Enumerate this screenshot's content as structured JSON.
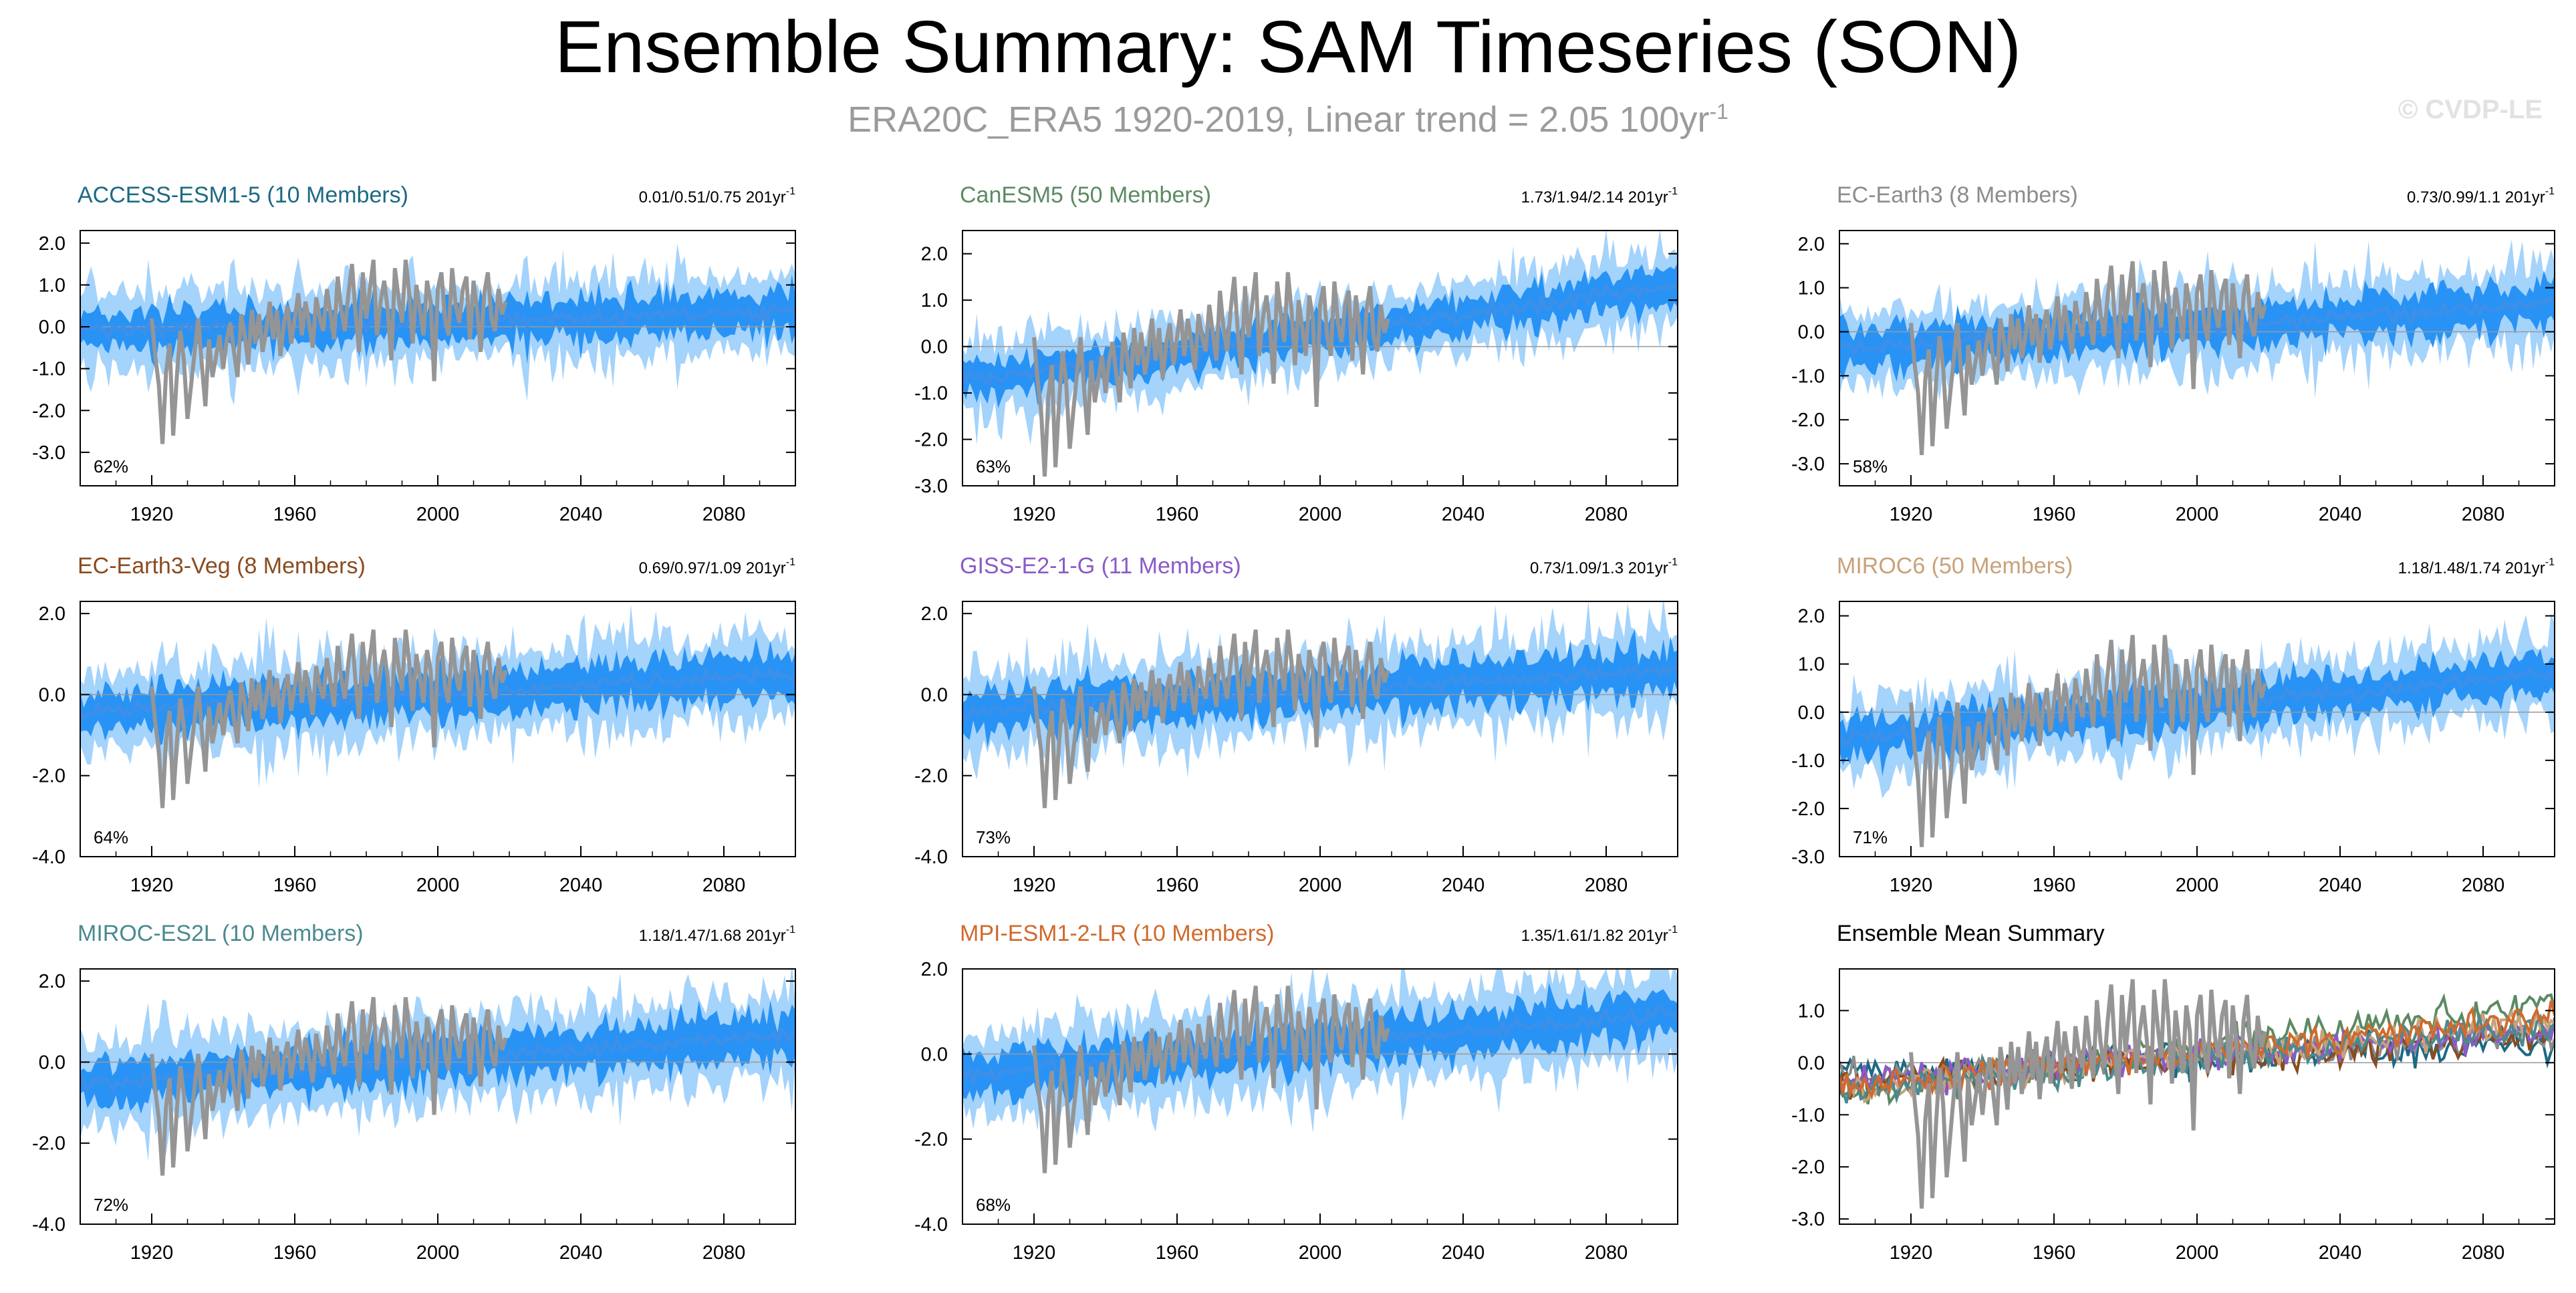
{
  "title": "Ensemble Summary: SAM Timeseries (SON)",
  "subtitle": {
    "text": "ERA20C_ERA5 1920-2019, Linear trend = 2.05 100yr",
    "sup": "-1"
  },
  "copyright": "© CVDP-LE",
  "colors": {
    "band_outer": "#a4d3fb",
    "band_inner": "#2893f5",
    "ensemble_mean": "#3e8fe8",
    "observations": "#959595",
    "frame": "#000000",
    "zero_line": "#999999"
  },
  "chart_data": [
    {
      "type": "area",
      "title": "ACCESS-ESM1-5 (10 Members)",
      "title_color": "#1b6a83",
      "trend": "0.01/0.51/0.75 201yr",
      "trend_sup": "-1",
      "percent": "62%",
      "x_range": [
        1900,
        2100
      ],
      "ylim": [
        -3.8,
        2.3
      ],
      "yticks": [
        2.0,
        1.0,
        0.0,
        -1.0,
        -2.0,
        -3.0
      ],
      "ytick_labels": [
        "2.0",
        "1.0",
        "0.0",
        "-1.0",
        "-2.0",
        "-3.0"
      ],
      "xticks": [
        1920,
        1960,
        2000,
        2040,
        2080
      ],
      "xtick_labels": [
        "1920",
        "1960",
        "2000",
        "2040",
        "2080"
      ],
      "trend_start": -0.1,
      "trend_end": 0.35,
      "spread": 1.15,
      "seed": 11
    },
    {
      "type": "area",
      "title": "CanESM5 (50 Members)",
      "title_color": "#5c8a62",
      "trend": "1.73/1.94/2.14 201yr",
      "trend_sup": "-1",
      "percent": "63%",
      "x_range": [
        1900,
        2100
      ],
      "ylim": [
        -3.0,
        2.5
      ],
      "yticks": [
        2.0,
        1.0,
        0.0,
        -1.0,
        -2.0,
        -3.0
      ],
      "ytick_labels": [
        "2.0",
        "1.0",
        "0.0",
        "-1.0",
        "-2.0",
        "-3.0"
      ],
      "xticks": [
        1920,
        1960,
        2000,
        2040,
        2080
      ],
      "xtick_labels": [
        "1920",
        "1960",
        "2000",
        "2040",
        "2080"
      ],
      "trend_start": -0.75,
      "trend_end": 1.3,
      "spread": 0.95,
      "seed": 23
    },
    {
      "type": "area",
      "title": "EC-Earth3 (8 Members)",
      "title_color": "#8c8c8c",
      "trend": "0.73/0.99/1.1 201yr",
      "trend_sup": "-1",
      "percent": "58%",
      "x_range": [
        1900,
        2100
      ],
      "ylim": [
        -3.5,
        2.3
      ],
      "yticks": [
        2.0,
        1.0,
        0.0,
        -1.0,
        -2.0,
        -3.0
      ],
      "ytick_labels": [
        "2.0",
        "1.0",
        "0.0",
        "-1.0",
        "-2.0",
        "-3.0"
      ],
      "xticks": [
        1920,
        1960,
        2000,
        2040,
        2080
      ],
      "xtick_labels": [
        "1920",
        "1960",
        "2000",
        "2040",
        "2080"
      ],
      "trend_start": -0.4,
      "trend_end": 0.6,
      "spread": 1.1,
      "seed": 37
    },
    {
      "type": "area",
      "title": "EC-Earth3-Veg (8 Members)",
      "title_color": "#8a4b1f",
      "trend": "0.69/0.97/1.09 201yr",
      "trend_sup": "-1",
      "percent": "64%",
      "x_range": [
        1900,
        2100
      ],
      "ylim": [
        -4.0,
        2.3
      ],
      "yticks": [
        2.0,
        0.0,
        -2.0,
        -4.0
      ],
      "ytick_labels": [
        "2.0",
        "0.0",
        "-2.0",
        "-4.0"
      ],
      "xticks": [
        1920,
        1960,
        2000,
        2040,
        2080
      ],
      "xtick_labels": [
        "1920",
        "1960",
        "2000",
        "2040",
        "2080"
      ],
      "trend_start": -0.45,
      "trend_end": 0.5,
      "spread": 1.3,
      "seed": 41
    },
    {
      "type": "area",
      "title": "GISS-E2-1-G (11 Members)",
      "title_color": "#8a5ac8",
      "trend": "0.73/1.09/1.3 201yr",
      "trend_sup": "-1",
      "percent": "73%",
      "x_range": [
        1900,
        2100
      ],
      "ylim": [
        -4.0,
        2.3
      ],
      "yticks": [
        2.0,
        0.0,
        -2.0,
        -4.0
      ],
      "ytick_labels": [
        "2.0",
        "0.0",
        "-2.0",
        "-4.0"
      ],
      "xticks": [
        1920,
        1960,
        2000,
        2040,
        2080
      ],
      "xtick_labels": [
        "1920",
        "1960",
        "2000",
        "2040",
        "2080"
      ],
      "trend_start": -0.45,
      "trend_end": 0.6,
      "spread": 1.3,
      "seed": 53
    },
    {
      "type": "area",
      "title": "MIROC6 (50 Members)",
      "title_color": "#c8a27a",
      "trend": "1.18/1.48/1.74 201yr",
      "trend_sup": "-1",
      "percent": "71%",
      "x_range": [
        1900,
        2100
      ],
      "ylim": [
        -3.0,
        2.3
      ],
      "yticks": [
        2.0,
        1.0,
        0.0,
        -1.0,
        -2.0,
        -3.0
      ],
      "ytick_labels": [
        "2.0",
        "1.0",
        "0.0",
        "-1.0",
        "-2.0",
        "-3.0"
      ],
      "xticks": [
        1920,
        1960,
        2000,
        2040,
        2080
      ],
      "xtick_labels": [
        "1920",
        "1960",
        "2000",
        "2040",
        "2080"
      ],
      "trend_start": -0.55,
      "trend_end": 0.8,
      "spread": 0.95,
      "seed": 67
    },
    {
      "type": "area",
      "title": "MIROC-ES2L (10 Members)",
      "title_color": "#4a8a8f",
      "trend": "1.18/1.47/1.68 201yr",
      "trend_sup": "-1",
      "percent": "72%",
      "x_range": [
        1900,
        2100
      ],
      "ylim": [
        -4.0,
        2.3
      ],
      "yticks": [
        2.0,
        0.0,
        -2.0,
        -4.0
      ],
      "ytick_labels": [
        "2.0",
        "0.0",
        "-2.0",
        "-4.0"
      ],
      "xticks": [
        1920,
        1960,
        2000,
        2040,
        2080
      ],
      "xtick_labels": [
        "1920",
        "1960",
        "2000",
        "2040",
        "2080"
      ],
      "trend_start": -0.55,
      "trend_end": 0.7,
      "spread": 1.3,
      "seed": 79
    },
    {
      "type": "area",
      "title": "MPI-ESM1-2-LR (10 Members)",
      "title_color": "#d06a2d",
      "trend": "1.35/1.61/1.82 201yr",
      "trend_sup": "-1",
      "percent": "68%",
      "x_range": [
        1900,
        2100
      ],
      "ylim": [
        -4.0,
        2.0
      ],
      "yticks": [
        2.0,
        0.0,
        -2.0,
        -4.0
      ],
      "ytick_labels": [
        "2.0",
        "0.0",
        "-2.0",
        "-4.0"
      ],
      "xticks": [
        1920,
        1960,
        2000,
        2040,
        2080
      ],
      "xtick_labels": [
        "1920",
        "1960",
        "2000",
        "2040",
        "2080"
      ],
      "trend_start": -0.5,
      "trend_end": 0.95,
      "spread": 1.25,
      "seed": 97
    },
    {
      "type": "line",
      "title": "Ensemble Mean Summary",
      "title_color": "#000000",
      "trend": "",
      "trend_sup": "",
      "percent": "",
      "x_range": [
        1900,
        2100
      ],
      "ylim": [
        -3.1,
        1.8
      ],
      "yticks": [
        1.0,
        0.0,
        -1.0,
        -2.0,
        -3.0
      ],
      "ytick_labels": [
        "1.0",
        "0.0",
        "-1.0",
        "-2.0",
        "-3.0"
      ],
      "xticks": [
        1920,
        1960,
        2000,
        2040,
        2080
      ],
      "xtick_labels": [
        "1920",
        "1960",
        "2000",
        "2040",
        "2080"
      ],
      "series": [
        {
          "name": "ACCESS-ESM1-5",
          "color": "#1b6a83",
          "start": -0.2,
          "end": 0.35,
          "seed": 11
        },
        {
          "name": "CanESM5",
          "color": "#5c8a62",
          "start": -0.6,
          "end": 1.15,
          "seed": 23
        },
        {
          "name": "EC-Earth3",
          "color": "#8c8c8c",
          "start": -0.3,
          "end": 0.55,
          "seed": 37
        },
        {
          "name": "EC-Earth3-Veg",
          "color": "#8a4b1f",
          "start": -0.4,
          "end": 0.5,
          "seed": 41
        },
        {
          "name": "GISS-E2-1-G",
          "color": "#8a5ac8",
          "start": -0.4,
          "end": 0.65,
          "seed": 53
        },
        {
          "name": "MIROC6",
          "color": "#c8a27a",
          "start": -0.55,
          "end": 0.8,
          "seed": 67
        },
        {
          "name": "MIROC-ES2L",
          "color": "#4a8a8f",
          "start": -0.55,
          "end": 0.7,
          "seed": 79
        },
        {
          "name": "MPI-ESM1-2-LR",
          "color": "#d06a2d",
          "start": -0.5,
          "end": 0.9,
          "seed": 97
        }
      ]
    }
  ],
  "observations": {
    "name": "ERA20C_ERA5",
    "start_year": 1920,
    "end_year": 2019,
    "values": [
      0.2,
      -0.7,
      -1.4,
      -2.8,
      -1.1,
      -0.4,
      -2.6,
      -1.2,
      -0.1,
      -0.8,
      -2.2,
      -1.4,
      -0.6,
      0.2,
      -0.9,
      -1.9,
      -0.3,
      -1.2,
      -0.7,
      -0.2,
      -1.0,
      -0.3,
      0.1,
      -0.6,
      -1.2,
      0.3,
      -0.2,
      -0.9,
      0.4,
      -0.4,
      0.3,
      -0.6,
      -0.1,
      0.6,
      -0.3,
      0.4,
      -0.7,
      0.1,
      0.5,
      -0.4,
      0.2,
      0.8,
      -0.2,
      0.6,
      0.1,
      -0.5,
      0.7,
      0.2,
      -0.1,
      0.9,
      0.3,
      -0.3,
      1.2,
      0.4,
      -0.1,
      0.8,
      1.5,
      0.3,
      -0.6,
      1.3,
      0.2,
      0.9,
      1.6,
      -0.2,
      0.6,
      1.1,
      0.4,
      -0.8,
      1.4,
      0.7,
      0.1,
      1.6,
      0.8,
      -0.4,
      1.0,
      0.4,
      -0.2,
      1.1,
      0.6,
      -1.3,
      0.9,
      1.3,
      0.2,
      -0.2,
      1.4,
      0.5,
      0.1,
      0.9,
      1.2,
      -0.3,
      1.1,
      0.4,
      -0.6,
      0.8,
      1.3,
      0.2,
      -0.1,
      0.9,
      0.3,
      0.6
    ]
  }
}
